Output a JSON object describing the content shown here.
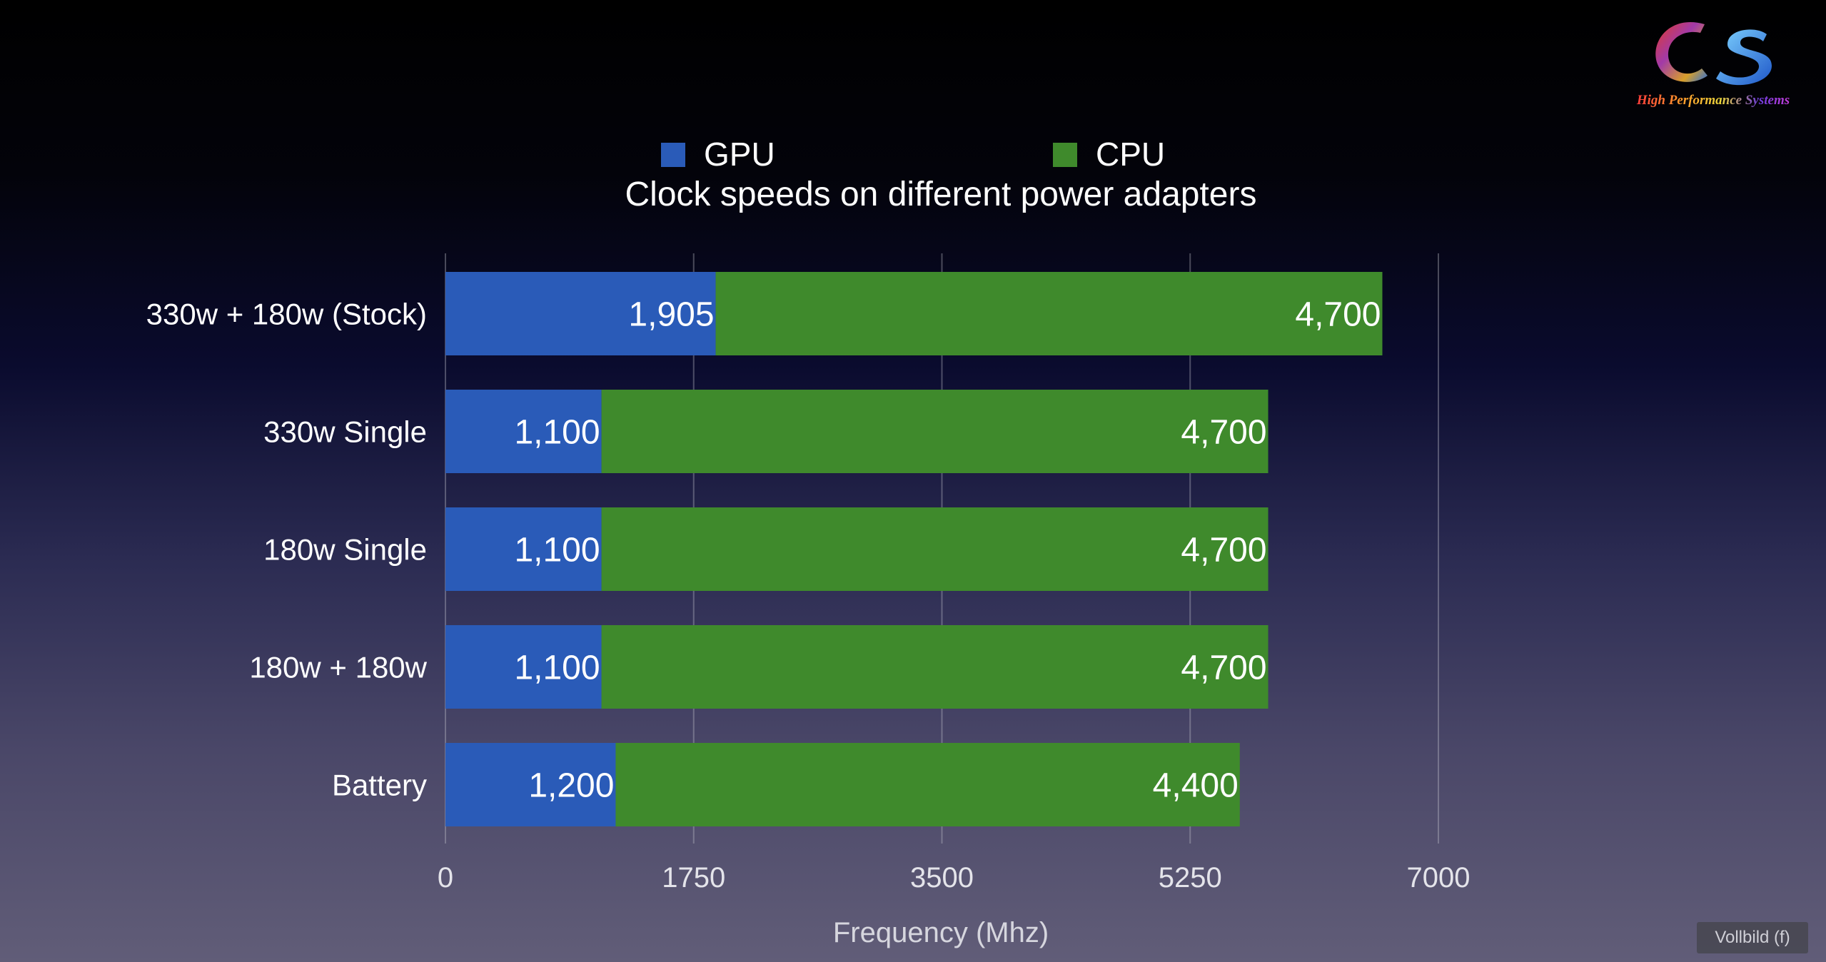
{
  "chart_data": {
    "type": "bar",
    "orientation": "horizontal",
    "stacked": true,
    "title": "Clock speeds on different power adapters",
    "xlabel": "Frequency (Mhz)",
    "ylabel": "",
    "xlim": [
      0,
      7000
    ],
    "xticks": [
      "0",
      "1750",
      "3500",
      "5250",
      "7000"
    ],
    "grid": true,
    "legend": "top",
    "categories": [
      "330w + 180w (Stock)",
      "330w Single",
      "180w Single",
      "180w + 180w",
      "Battery"
    ],
    "series": [
      {
        "name": "GPU",
        "color": "#2a5bb8",
        "values": [
          1905,
          1100,
          1100,
          1100,
          1200
        ],
        "labels": [
          "1,905",
          "1,100",
          "1,100",
          "1,100",
          "1,200"
        ]
      },
      {
        "name": "CPU",
        "color": "#3f8a2c",
        "values": [
          4700,
          4700,
          4700,
          4700,
          4400
        ],
        "labels": [
          "4,700",
          "4,700",
          "4,700",
          "4,700",
          "4,400"
        ]
      }
    ]
  },
  "logo": {
    "letters": "CS",
    "tagline": "High Performance Systems"
  },
  "overlay": {
    "fullscreen_hint": "Vollbild (f)"
  }
}
